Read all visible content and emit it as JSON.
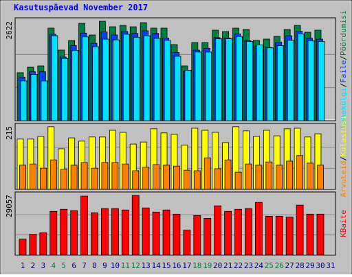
{
  "legend_separator": "/",
  "chart_data": [
    {
      "type": "bar",
      "title": "Kasutuspäevad November 2017",
      "ylim": [
        0,
        2622
      ],
      "yticks": [
        2622
      ],
      "series": [
        {
          "name": "Pöördumisi",
          "color": "#008040",
          "values": [
            1266,
            1410,
            1446,
            2441,
            1862,
            2115,
            2567,
            2260,
            2622,
            2477,
            2513,
            2477,
            2585,
            2441,
            2441,
            2007,
            1446,
            2061,
            2061,
            2387,
            2350,
            2441,
            2405,
            2115,
            2152,
            2224,
            2405,
            2513,
            2332,
            2387,
            null
          ]
        },
        {
          "name": "Faile",
          "color": "#0040ff",
          "values": [
            1150,
            1290,
            1290,
            2280,
            1680,
            1980,
            2310,
            2040,
            2340,
            2260,
            2350,
            2300,
            2370,
            2300,
            2180,
            1800,
            1300,
            1860,
            1910,
            2190,
            2180,
            2290,
            2110,
            1970,
            1930,
            2070,
            2240,
            2360,
            2170,
            2150,
            null
          ]
        },
        {
          "name": "Lehekülgi",
          "color": "#00e0ff",
          "values": [
            1050,
            1220,
            1050,
            2240,
            1640,
            1850,
            2210,
            1950,
            2150,
            2130,
            2280,
            2200,
            2240,
            2170,
            2120,
            1700,
            1330,
            1810,
            1810,
            2160,
            2160,
            2220,
            2090,
            2000,
            1920,
            1980,
            2120,
            2290,
            2110,
            2090,
            null
          ]
        }
      ]
    },
    {
      "type": "bar",
      "ylim": [
        0,
        215
      ],
      "yticks": [
        215
      ],
      "series": [
        {
          "name": "Külastusi",
          "color": "#ffff00",
          "values": [
            171,
            171,
            180,
            213,
            138,
            175,
            164,
            178,
            178,
            201,
            194,
            154,
            161,
            206,
            192,
            187,
            150,
            208,
            201,
            194,
            159,
            213,
            199,
            180,
            201,
            182,
            206,
            208,
            178,
            189,
            null
          ]
        },
        {
          "name": "Arvuteid",
          "color": "#ff8000",
          "values": [
            82,
            86,
            72,
            100,
            68,
            82,
            91,
            72,
            91,
            91,
            86,
            63,
            75,
            84,
            82,
            79,
            65,
            63,
            107,
            70,
            100,
            58,
            86,
            82,
            93,
            82,
            96,
            115,
            89,
            82,
            null
          ]
        }
      ]
    },
    {
      "type": "bar",
      "ylim": [
        0,
        29057
      ],
      "yticks": [
        29057
      ],
      "categories": [
        "1",
        "2",
        "3",
        "4",
        "5",
        "6",
        "7",
        "8",
        "9",
        "10",
        "11",
        "12",
        "13",
        "14",
        "15",
        "16",
        "17",
        "18",
        "19",
        "20",
        "21",
        "22",
        "23",
        "24",
        "25",
        "26",
        "27",
        "28",
        "29",
        "30",
        "31"
      ],
      "category_colors": [
        "#000080",
        "#000080",
        "#000080",
        "#008040",
        "#008040",
        "#000080",
        "#000080",
        "#000080",
        "#000080",
        "#000080",
        "#008040",
        "#008040",
        "#000080",
        "#000080",
        "#000080",
        "#000080",
        "#000080",
        "#008040",
        "#008040",
        "#000080",
        "#000080",
        "#000080",
        "#000080",
        "#000080",
        "#008040",
        "#008040",
        "#000080",
        "#000080",
        "#000080",
        "#000080",
        "#000080"
      ],
      "series": [
        {
          "name": "KBaite",
          "color": "#ff0000",
          "values": [
            7680,
            10020,
            10690,
            21040,
            22040,
            21380,
            28390,
            20370,
            22380,
            22380,
            21710,
            28720,
            22710,
            20710,
            21710,
            19710,
            12020,
            19040,
            17700,
            23710,
            21040,
            22040,
            22380,
            25380,
            18700,
            18700,
            18370,
            24050,
            19710,
            19710,
            null
          ]
        }
      ]
    }
  ]
}
